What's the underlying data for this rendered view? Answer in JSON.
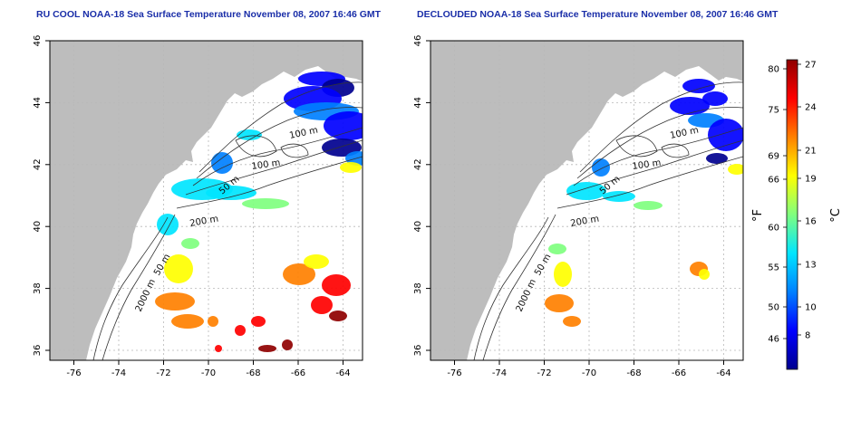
{
  "panels": [
    {
      "title": "RU COOL NOAA-18 Sea Surface Temperature November 08, 2007 16:46 GMT"
    },
    {
      "title": "DECLOUDED NOAA-18 Sea Surface Temperature November 08, 2007 16:46 GMT"
    }
  ],
  "axes": {
    "x_ticks": [
      "-76",
      "-74",
      "-72",
      "-70",
      "-68",
      "-66",
      "-64"
    ],
    "y_ticks": [
      "36",
      "38",
      "40",
      "42",
      "44",
      "46"
    ],
    "xlim": [
      -77,
      -63
    ],
    "ylim": [
      35,
      46
    ]
  },
  "contour_labels": [
    "100 m",
    "100 m",
    "50 m",
    "200 m",
    "50 m",
    "2000 m"
  ],
  "colorbar": {
    "fahrenheit_unit": "°F",
    "celsius_unit": "°C",
    "fahrenheit_ticks": [
      "80",
      "75",
      "69",
      "66",
      "60",
      "55",
      "50",
      "46"
    ],
    "celsius_ticks": [
      "27",
      "24",
      "21",
      "19",
      "16",
      "13",
      "10",
      "8"
    ],
    "colors": [
      "#00008f",
      "#0000ff",
      "#0080ff",
      "#00e5ff",
      "#7fff7f",
      "#ffff00",
      "#ff8000",
      "#ff0000",
      "#8f0000"
    ]
  },
  "colors": {
    "land": "#bdbdbd",
    "ocean": "#ffffff",
    "contour": "#333333",
    "title": "#1a2ea8",
    "grid": "#b8b8b8"
  }
}
